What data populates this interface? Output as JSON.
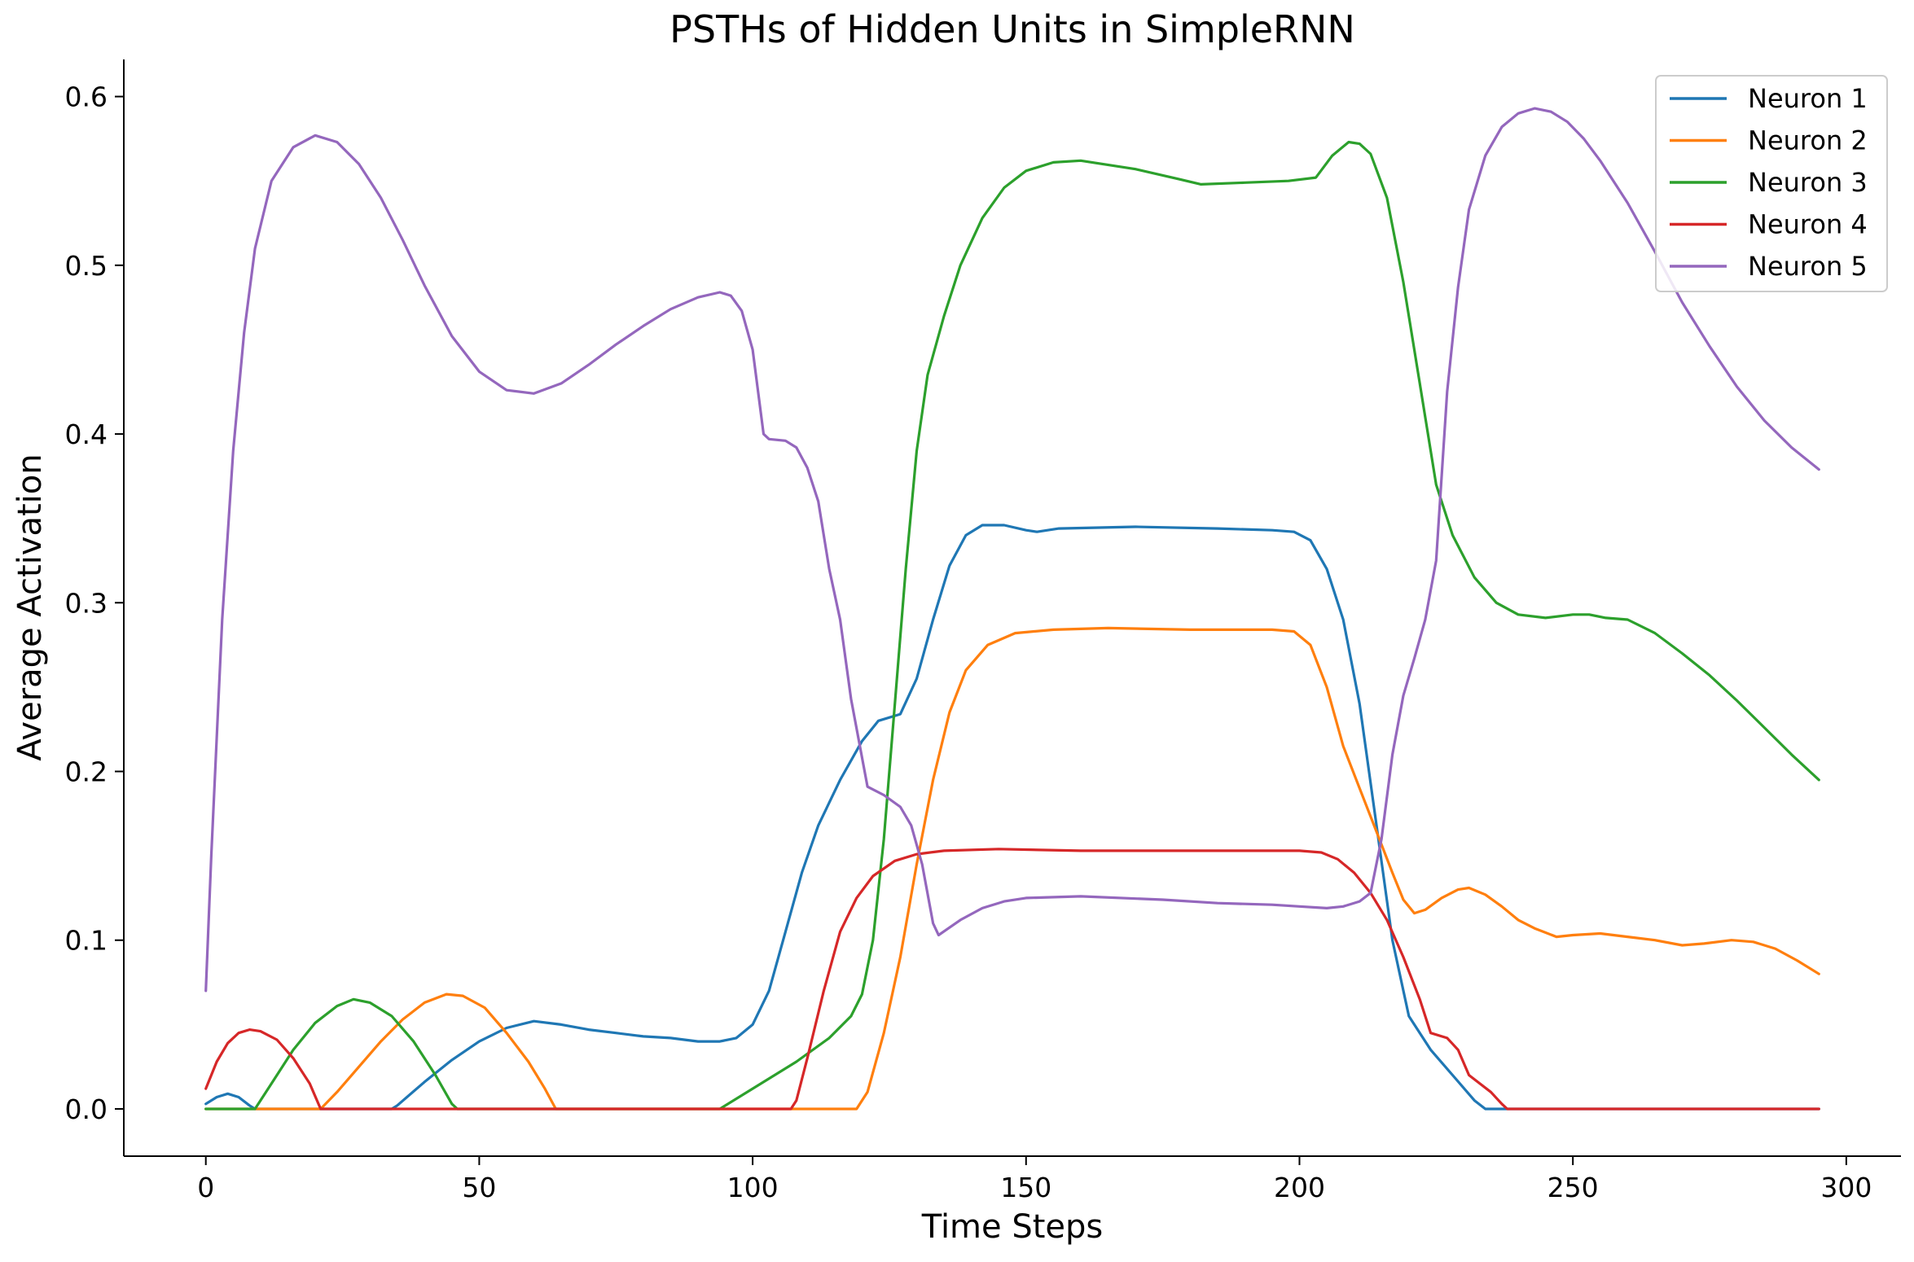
{
  "chart_data": {
    "type": "line",
    "title": "PSTHs of Hidden Units in SimpleRNN",
    "xlabel": "Time Steps",
    "ylabel": "Average Activation",
    "xlim": [
      -15,
      310
    ],
    "ylim": [
      -0.028,
      0.622
    ],
    "xticks": [
      0,
      50,
      100,
      150,
      200,
      250,
      300
    ],
    "yticks": [
      0.0,
      0.1,
      0.2,
      0.3,
      0.4,
      0.5,
      0.6
    ],
    "xtick_labels": [
      "0",
      "50",
      "100",
      "150",
      "200",
      "250",
      "300"
    ],
    "ytick_labels": [
      "0.0",
      "0.1",
      "0.2",
      "0.3",
      "0.4",
      "0.5",
      "0.6"
    ],
    "grid": false,
    "legend_position": "top-right",
    "series": [
      {
        "name": "Neuron 1",
        "color": "#1f77b4",
        "points": [
          [
            0,
            0.003
          ],
          [
            2,
            0.007
          ],
          [
            4,
            0.009
          ],
          [
            6,
            0.007
          ],
          [
            8,
            0.002
          ],
          [
            9,
            0.0
          ],
          [
            34,
            0.0
          ],
          [
            35,
            0.002
          ],
          [
            40,
            0.016
          ],
          [
            45,
            0.029
          ],
          [
            50,
            0.04
          ],
          [
            55,
            0.048
          ],
          [
            60,
            0.052
          ],
          [
            65,
            0.05
          ],
          [
            70,
            0.047
          ],
          [
            75,
            0.045
          ],
          [
            80,
            0.043
          ],
          [
            85,
            0.042
          ],
          [
            90,
            0.04
          ],
          [
            94,
            0.04
          ],
          [
            97,
            0.042
          ],
          [
            100,
            0.05
          ],
          [
            103,
            0.07
          ],
          [
            106,
            0.105
          ],
          [
            109,
            0.14
          ],
          [
            112,
            0.168
          ],
          [
            116,
            0.195
          ],
          [
            120,
            0.218
          ],
          [
            123,
            0.23
          ],
          [
            127,
            0.234
          ],
          [
            130,
            0.255
          ],
          [
            133,
            0.29
          ],
          [
            136,
            0.322
          ],
          [
            139,
            0.34
          ],
          [
            142,
            0.346
          ],
          [
            146,
            0.346
          ],
          [
            150,
            0.343
          ],
          [
            152,
            0.342
          ],
          [
            156,
            0.344
          ],
          [
            170,
            0.345
          ],
          [
            185,
            0.344
          ],
          [
            195,
            0.343
          ],
          [
            199,
            0.342
          ],
          [
            202,
            0.337
          ],
          [
            205,
            0.32
          ],
          [
            208,
            0.29
          ],
          [
            211,
            0.24
          ],
          [
            214,
            0.17
          ],
          [
            217,
            0.1
          ],
          [
            220,
            0.055
          ],
          [
            224,
            0.035
          ],
          [
            228,
            0.02
          ],
          [
            232,
            0.005
          ],
          [
            234,
            0.0
          ],
          [
            295,
            0.0
          ]
        ]
      },
      {
        "name": "Neuron 2",
        "color": "#ff7f0e",
        "points": [
          [
            0,
            0.0
          ],
          [
            21,
            0.0
          ],
          [
            24,
            0.01
          ],
          [
            28,
            0.025
          ],
          [
            32,
            0.04
          ],
          [
            36,
            0.053
          ],
          [
            40,
            0.063
          ],
          [
            44,
            0.068
          ],
          [
            47,
            0.067
          ],
          [
            51,
            0.06
          ],
          [
            55,
            0.045
          ],
          [
            59,
            0.028
          ],
          [
            62,
            0.012
          ],
          [
            64,
            0.0
          ],
          [
            119,
            0.0
          ],
          [
            121,
            0.01
          ],
          [
            124,
            0.045
          ],
          [
            127,
            0.09
          ],
          [
            130,
            0.145
          ],
          [
            133,
            0.195
          ],
          [
            136,
            0.235
          ],
          [
            139,
            0.26
          ],
          [
            143,
            0.275
          ],
          [
            148,
            0.282
          ],
          [
            155,
            0.284
          ],
          [
            165,
            0.285
          ],
          [
            180,
            0.284
          ],
          [
            195,
            0.284
          ],
          [
            199,
            0.283
          ],
          [
            202,
            0.275
          ],
          [
            205,
            0.25
          ],
          [
            208,
            0.215
          ],
          [
            211,
            0.19
          ],
          [
            214,
            0.165
          ],
          [
            217,
            0.14
          ],
          [
            219,
            0.124
          ],
          [
            221,
            0.116
          ],
          [
            223,
            0.118
          ],
          [
            226,
            0.125
          ],
          [
            229,
            0.13
          ],
          [
            231,
            0.131
          ],
          [
            234,
            0.127
          ],
          [
            237,
            0.12
          ],
          [
            240,
            0.112
          ],
          [
            243,
            0.107
          ],
          [
            247,
            0.102
          ],
          [
            250,
            0.103
          ],
          [
            255,
            0.104
          ],
          [
            260,
            0.102
          ],
          [
            265,
            0.1
          ],
          [
            270,
            0.097
          ],
          [
            274,
            0.098
          ],
          [
            279,
            0.1
          ],
          [
            283,
            0.099
          ],
          [
            287,
            0.095
          ],
          [
            291,
            0.088
          ],
          [
            295,
            0.08
          ]
        ]
      },
      {
        "name": "Neuron 3",
        "color": "#2ca02c",
        "points": [
          [
            0,
            0.0
          ],
          [
            9,
            0.0
          ],
          [
            12,
            0.015
          ],
          [
            16,
            0.035
          ],
          [
            20,
            0.051
          ],
          [
            24,
            0.061
          ],
          [
            27,
            0.065
          ],
          [
            30,
            0.063
          ],
          [
            34,
            0.055
          ],
          [
            38,
            0.04
          ],
          [
            42,
            0.02
          ],
          [
            45,
            0.003
          ],
          [
            46,
            0.0
          ],
          [
            94,
            0.0
          ],
          [
            100,
            0.012
          ],
          [
            108,
            0.028
          ],
          [
            114,
            0.042
          ],
          [
            118,
            0.055
          ],
          [
            120,
            0.068
          ],
          [
            122,
            0.1
          ],
          [
            124,
            0.16
          ],
          [
            126,
            0.24
          ],
          [
            128,
            0.32
          ],
          [
            130,
            0.39
          ],
          [
            132,
            0.435
          ],
          [
            135,
            0.47
          ],
          [
            138,
            0.5
          ],
          [
            142,
            0.528
          ],
          [
            146,
            0.546
          ],
          [
            150,
            0.556
          ],
          [
            155,
            0.561
          ],
          [
            160,
            0.562
          ],
          [
            170,
            0.557
          ],
          [
            178,
            0.551
          ],
          [
            182,
            0.548
          ],
          [
            190,
            0.549
          ],
          [
            198,
            0.55
          ],
          [
            203,
            0.552
          ],
          [
            206,
            0.565
          ],
          [
            209,
            0.573
          ],
          [
            211,
            0.572
          ],
          [
            213,
            0.566
          ],
          [
            216,
            0.54
          ],
          [
            219,
            0.49
          ],
          [
            222,
            0.43
          ],
          [
            225,
            0.37
          ],
          [
            228,
            0.34
          ],
          [
            232,
            0.315
          ],
          [
            236,
            0.3
          ],
          [
            240,
            0.293
          ],
          [
            245,
            0.291
          ],
          [
            250,
            0.293
          ],
          [
            253,
            0.293
          ],
          [
            256,
            0.291
          ],
          [
            260,
            0.29
          ],
          [
            265,
            0.282
          ],
          [
            270,
            0.27
          ],
          [
            275,
            0.257
          ],
          [
            280,
            0.242
          ],
          [
            285,
            0.226
          ],
          [
            290,
            0.21
          ],
          [
            295,
            0.195
          ]
        ]
      },
      {
        "name": "Neuron 4",
        "color": "#d62728",
        "points": [
          [
            0,
            0.012
          ],
          [
            2,
            0.028
          ],
          [
            4,
            0.039
          ],
          [
            6,
            0.045
          ],
          [
            8,
            0.047
          ],
          [
            10,
            0.046
          ],
          [
            13,
            0.041
          ],
          [
            16,
            0.03
          ],
          [
            19,
            0.015
          ],
          [
            21,
            0.0
          ],
          [
            107,
            0.0
          ],
          [
            108,
            0.005
          ],
          [
            110,
            0.03
          ],
          [
            113,
            0.07
          ],
          [
            116,
            0.105
          ],
          [
            119,
            0.125
          ],
          [
            122,
            0.138
          ],
          [
            126,
            0.147
          ],
          [
            130,
            0.151
          ],
          [
            135,
            0.153
          ],
          [
            145,
            0.154
          ],
          [
            160,
            0.153
          ],
          [
            180,
            0.153
          ],
          [
            200,
            0.153
          ],
          [
            204,
            0.152
          ],
          [
            207,
            0.148
          ],
          [
            210,
            0.14
          ],
          [
            213,
            0.128
          ],
          [
            216,
            0.112
          ],
          [
            219,
            0.09
          ],
          [
            222,
            0.065
          ],
          [
            224,
            0.045
          ],
          [
            227,
            0.042
          ],
          [
            229,
            0.035
          ],
          [
            231,
            0.02
          ],
          [
            233,
            0.015
          ],
          [
            235,
            0.01
          ],
          [
            237,
            0.003
          ],
          [
            238,
            0.0
          ],
          [
            295,
            0.0
          ]
        ]
      },
      {
        "name": "Neuron 5",
        "color": "#9467bd",
        "points": [
          [
            0,
            0.07
          ],
          [
            1,
            0.15
          ],
          [
            3,
            0.29
          ],
          [
            5,
            0.39
          ],
          [
            7,
            0.46
          ],
          [
            9,
            0.51
          ],
          [
            12,
            0.55
          ],
          [
            16,
            0.57
          ],
          [
            20,
            0.577
          ],
          [
            24,
            0.573
          ],
          [
            28,
            0.56
          ],
          [
            32,
            0.54
          ],
          [
            36,
            0.515
          ],
          [
            40,
            0.488
          ],
          [
            45,
            0.458
          ],
          [
            50,
            0.437
          ],
          [
            55,
            0.426
          ],
          [
            60,
            0.424
          ],
          [
            65,
            0.43
          ],
          [
            70,
            0.441
          ],
          [
            75,
            0.453
          ],
          [
            80,
            0.464
          ],
          [
            85,
            0.474
          ],
          [
            90,
            0.481
          ],
          [
            94,
            0.484
          ],
          [
            96,
            0.482
          ],
          [
            98,
            0.473
          ],
          [
            100,
            0.45
          ],
          [
            102,
            0.4
          ],
          [
            103,
            0.397
          ],
          [
            106,
            0.396
          ],
          [
            108,
            0.392
          ],
          [
            110,
            0.38
          ],
          [
            112,
            0.36
          ],
          [
            114,
            0.32
          ],
          [
            116,
            0.29
          ],
          [
            118,
            0.243
          ],
          [
            121,
            0.191
          ],
          [
            124,
            0.186
          ],
          [
            127,
            0.179
          ],
          [
            129,
            0.168
          ],
          [
            131,
            0.145
          ],
          [
            133,
            0.11
          ],
          [
            134,
            0.103
          ],
          [
            138,
            0.112
          ],
          [
            142,
            0.119
          ],
          [
            146,
            0.123
          ],
          [
            150,
            0.125
          ],
          [
            160,
            0.126
          ],
          [
            175,
            0.124
          ],
          [
            185,
            0.122
          ],
          [
            195,
            0.121
          ],
          [
            200,
            0.12
          ],
          [
            205,
            0.119
          ],
          [
            208,
            0.12
          ],
          [
            211,
            0.123
          ],
          [
            213,
            0.128
          ],
          [
            215,
            0.16
          ],
          [
            217,
            0.21
          ],
          [
            219,
            0.245
          ],
          [
            221,
            0.267
          ],
          [
            223,
            0.29
          ],
          [
            225,
            0.325
          ],
          [
            227,
            0.425
          ],
          [
            229,
            0.487
          ],
          [
            231,
            0.533
          ],
          [
            234,
            0.565
          ],
          [
            237,
            0.582
          ],
          [
            240,
            0.59
          ],
          [
            243,
            0.593
          ],
          [
            246,
            0.591
          ],
          [
            249,
            0.585
          ],
          [
            252,
            0.575
          ],
          [
            255,
            0.562
          ],
          [
            260,
            0.537
          ],
          [
            265,
            0.508
          ],
          [
            270,
            0.478
          ],
          [
            275,
            0.452
          ],
          [
            280,
            0.428
          ],
          [
            285,
            0.408
          ],
          [
            290,
            0.392
          ],
          [
            295,
            0.379
          ]
        ]
      }
    ]
  }
}
